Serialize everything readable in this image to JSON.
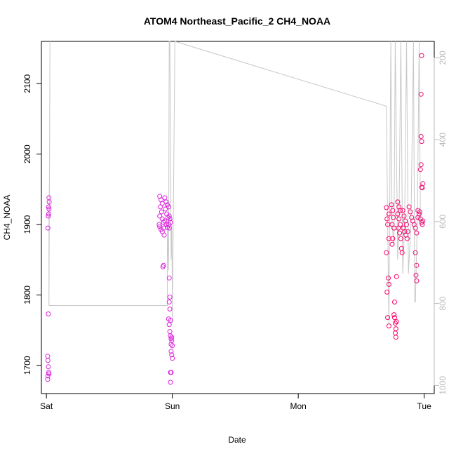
{
  "chart_data": {
    "type": "scatter",
    "title": "ATOM4 Northeast_Pacific_2 CH4_NOAA",
    "xlabel": "Date",
    "ylabel": "CH4_NOAA",
    "x_unit": "days since Sat 00:00",
    "xlim": [
      -0.04,
      3.08
    ],
    "ylim": [
      1660,
      2160
    ],
    "x_ticks": [
      {
        "value": 0,
        "label": "Sat"
      },
      {
        "value": 1,
        "label": "Sun"
      },
      {
        "value": 2,
        "label": "Mon"
      },
      {
        "value": 3,
        "label": "Tue"
      }
    ],
    "y_ticks": [
      1700,
      1800,
      1900,
      2000,
      2100
    ],
    "y2_axis": {
      "ylim": [
        1020,
        160
      ],
      "ticks": [
        200,
        400,
        600,
        800,
        1000
      ],
      "reversed": true
    },
    "grid": false,
    "marker_colors": [
      "#dd22dd",
      "#ee1177",
      "#ff0066"
    ],
    "line_color": "#c8c8c8",
    "series": [
      {
        "points": [
          [
            0.02,
            1938
          ],
          [
            0.022,
            1932
          ],
          [
            0.018,
            1925
          ],
          [
            0.02,
            1922
          ],
          [
            0.015,
            1912
          ],
          [
            0.018,
            1915
          ],
          [
            0.012,
            1895
          ],
          [
            0.015,
            1773
          ],
          [
            0.01,
            1713
          ],
          [
            0.012,
            1707
          ],
          [
            0.015,
            1698
          ],
          [
            0.018,
            1690
          ],
          [
            0.012,
            1685
          ],
          [
            0.01,
            1680
          ],
          [
            0.02,
            1688
          ],
          [
            0.9,
            1940
          ],
          [
            0.91,
            1935
          ],
          [
            0.92,
            1930
          ],
          [
            0.905,
            1925
          ],
          [
            0.915,
            1918
          ],
          [
            0.9,
            1912
          ],
          [
            0.92,
            1908
          ],
          [
            0.93,
            1903
          ],
          [
            0.895,
            1900
          ],
          [
            0.9,
            1897
          ],
          [
            0.91,
            1893
          ],
          [
            0.92,
            1890
          ],
          [
            0.93,
            1895
          ],
          [
            0.94,
            1938
          ],
          [
            0.95,
            1932
          ],
          [
            0.96,
            1928
          ],
          [
            0.945,
            1922
          ],
          [
            0.955,
            1915
          ],
          [
            0.965,
            1910
          ],
          [
            0.94,
            1905
          ],
          [
            0.95,
            1900
          ],
          [
            0.96,
            1896
          ],
          [
            0.935,
            1885
          ],
          [
            0.925,
            1840
          ],
          [
            0.93,
            1842
          ],
          [
            0.97,
            1925
          ],
          [
            0.975,
            1912
          ],
          [
            0.98,
            1908
          ],
          [
            0.985,
            1903
          ],
          [
            0.975,
            1895
          ],
          [
            0.97,
            1900
          ],
          [
            0.975,
            1824
          ],
          [
            0.98,
            1797
          ],
          [
            0.975,
            1790
          ],
          [
            0.98,
            1780
          ],
          [
            0.97,
            1766
          ],
          [
            0.985,
            1764
          ],
          [
            0.975,
            1758
          ],
          [
            0.98,
            1748
          ],
          [
            0.985,
            1742
          ],
          [
            0.99,
            1738
          ],
          [
            0.995,
            1735
          ],
          [
            0.99,
            1730
          ],
          [
            1.0,
            1728
          ],
          [
            0.99,
            1720
          ],
          [
            0.995,
            1715
          ],
          [
            1.0,
            1710
          ],
          [
            0.985,
            1690
          ],
          [
            0.99,
            1690
          ],
          [
            0.985,
            1676
          ],
          [
            0.995,
            1740
          ],
          [
            2.7,
            1924
          ],
          [
            2.72,
            1915
          ],
          [
            2.705,
            1908
          ],
          [
            2.71,
            1900
          ],
          [
            2.72,
            1880
          ],
          [
            2.7,
            1860
          ],
          [
            2.715,
            1824
          ],
          [
            2.72,
            1815
          ],
          [
            2.705,
            1804
          ],
          [
            2.71,
            1768
          ],
          [
            2.72,
            1756
          ],
          [
            2.74,
            1928
          ],
          [
            2.75,
            1920
          ],
          [
            2.755,
            1910
          ],
          [
            2.745,
            1900
          ],
          [
            2.76,
            1895
          ],
          [
            2.75,
            1880
          ],
          [
            2.745,
            1872
          ],
          [
            2.76,
            1772
          ],
          [
            2.765,
            1768
          ],
          [
            2.77,
            1760
          ],
          [
            2.775,
            1752
          ],
          [
            2.77,
            1746
          ],
          [
            2.775,
            1740
          ],
          [
            2.78,
            1762
          ],
          [
            2.765,
            1790
          ],
          [
            2.78,
            1826
          ],
          [
            2.79,
            1932
          ],
          [
            2.8,
            1925
          ],
          [
            2.81,
            1920
          ],
          [
            2.79,
            1915
          ],
          [
            2.8,
            1908
          ],
          [
            2.81,
            1900
          ],
          [
            2.795,
            1895
          ],
          [
            2.805,
            1888
          ],
          [
            2.815,
            1880
          ],
          [
            2.82,
            1866
          ],
          [
            2.825,
            1860
          ],
          [
            2.83,
            1920
          ],
          [
            2.84,
            1912
          ],
          [
            2.85,
            1905
          ],
          [
            2.86,
            1900
          ],
          [
            2.835,
            1895
          ],
          [
            2.845,
            1890
          ],
          [
            2.855,
            1885
          ],
          [
            2.865,
            1880
          ],
          [
            2.87,
            1890
          ],
          [
            2.88,
            1925
          ],
          [
            2.89,
            1918
          ],
          [
            2.9,
            1910
          ],
          [
            2.91,
            1905
          ],
          [
            2.92,
            1900
          ],
          [
            2.93,
            1895
          ],
          [
            2.94,
            1888
          ],
          [
            2.95,
            1910
          ],
          [
            2.96,
            1915
          ],
          [
            2.97,
            1908
          ],
          [
            2.98,
            1903
          ],
          [
            2.985,
            1900
          ],
          [
            2.99,
            1905
          ],
          [
            2.95,
            1920
          ],
          [
            2.965,
            1918
          ],
          [
            2.93,
            1860
          ],
          [
            2.935,
            1828
          ],
          [
            2.94,
            1820
          ],
          [
            2.94,
            1842
          ],
          [
            2.975,
            1985
          ],
          [
            2.97,
            1978
          ],
          [
            2.98,
            1953
          ],
          [
            2.99,
            1958
          ],
          [
            2.985,
            1952
          ],
          [
            2.975,
            2025
          ],
          [
            2.98,
            2018
          ],
          [
            2.975,
            2085
          ],
          [
            2.98,
            2140
          ]
        ]
      }
    ],
    "line_path": [
      [
        0.02,
        1785
      ],
      [
        0.02,
        1900
      ],
      [
        0.025,
        1995
      ],
      [
        0.028,
        2160
      ],
      [
        0.02,
        1785
      ],
      [
        0.96,
        1785
      ],
      [
        0.96,
        1900
      ],
      [
        0.97,
        1835
      ],
      [
        0.975,
        2160
      ],
      [
        0.98,
        2160
      ],
      [
        0.99,
        1850
      ],
      [
        0.995,
        1900
      ],
      [
        1.0,
        1800
      ],
      [
        1.0,
        1760
      ],
      [
        1.02,
        2160
      ],
      [
        2.7,
        2068
      ],
      [
        2.71,
        1900
      ],
      [
        2.72,
        1760
      ],
      [
        2.735,
        2160
      ],
      [
        2.745,
        1900
      ],
      [
        2.76,
        1870
      ],
      [
        2.77,
        2160
      ],
      [
        2.79,
        1850
      ],
      [
        2.8,
        1900
      ],
      [
        2.815,
        2160
      ],
      [
        2.83,
        1830
      ],
      [
        2.845,
        1900
      ],
      [
        2.86,
        2160
      ],
      [
        2.875,
        1830
      ],
      [
        2.895,
        1900
      ],
      [
        2.915,
        2160
      ],
      [
        2.925,
        1790
      ],
      [
        2.93,
        1790
      ],
      [
        2.945,
        1900
      ],
      [
        2.96,
        2160
      ],
      [
        2.97,
        1905
      ]
    ]
  }
}
